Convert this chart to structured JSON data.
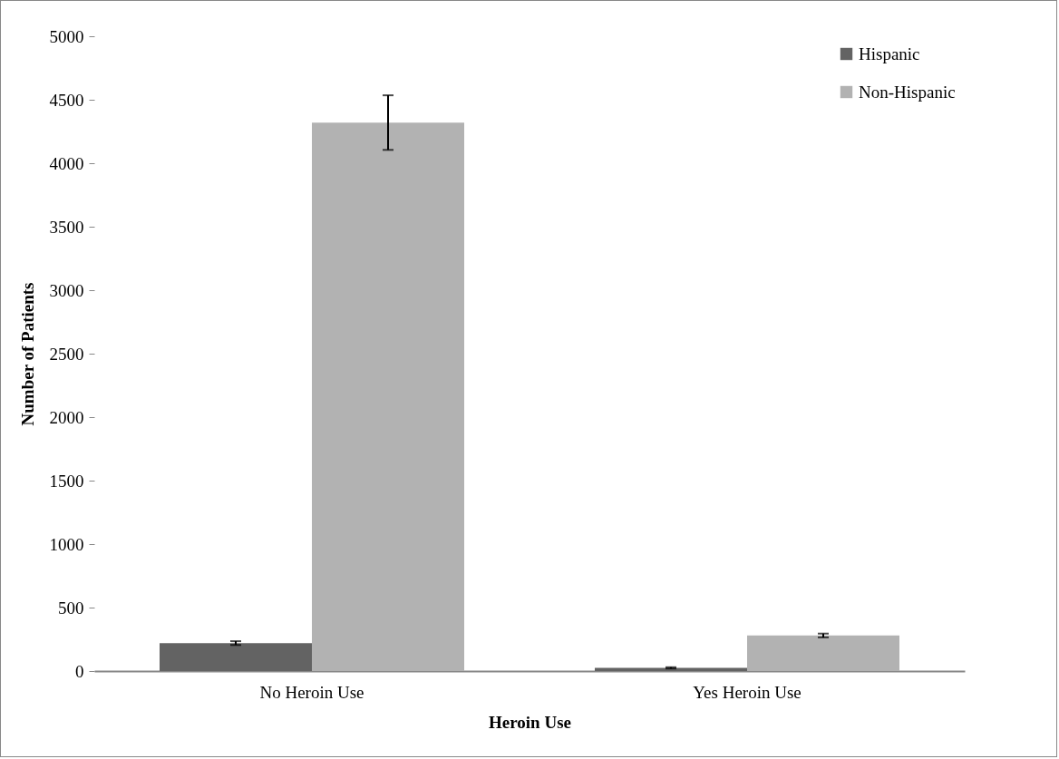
{
  "chart_data": {
    "type": "bar",
    "xlabel": "Heroin Use",
    "ylabel": "Number of Patients",
    "categories": [
      "No Heroin Use",
      "Yes Heroin Use"
    ],
    "series": [
      {
        "name": "Hispanic",
        "color": "#636363",
        "values": [
          220,
          25
        ],
        "errors": [
          15,
          5
        ]
      },
      {
        "name": "Non-Hispanic",
        "color": "#b2b2b2",
        "values": [
          4320,
          280
        ],
        "errors": [
          215,
          15
        ]
      }
    ],
    "ylim": [
      0,
      5000
    ],
    "yticks": [
      0,
      500,
      1000,
      1500,
      2000,
      2500,
      3000,
      3500,
      4000,
      4500,
      5000
    ],
    "grid": false,
    "legend": "top right"
  }
}
